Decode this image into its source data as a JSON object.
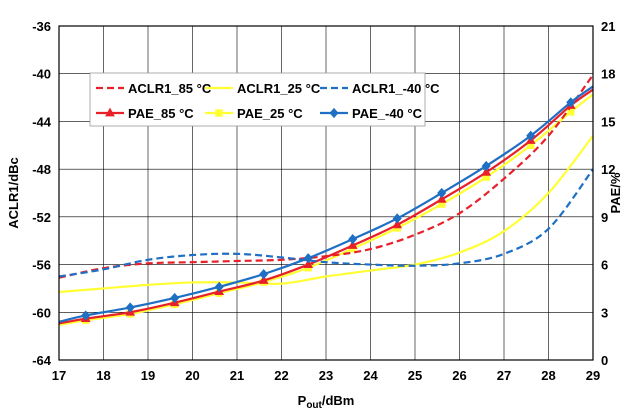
{
  "chart_data": {
    "type": "line",
    "xlabel": "Pout/dBm",
    "xlabel_main": "P",
    "xlabel_sub": "out",
    "xlabel_unit": "/dBm",
    "ylabel": "ACLR1/dBc",
    "y2label": "PAE/%",
    "xlim": [
      17,
      29
    ],
    "ylim": [
      -64,
      -36
    ],
    "y2lim": [
      0,
      21
    ],
    "x_ticks": [
      "17",
      "18",
      "19",
      "20",
      "21",
      "22",
      "23",
      "24",
      "25",
      "26",
      "27",
      "28",
      "29"
    ],
    "y_ticks": [
      "-36",
      "-40",
      "-44",
      "-48",
      "-52",
      "-56",
      "-60",
      "-64"
    ],
    "y2_ticks": [
      "21",
      "18",
      "15",
      "12",
      "9",
      "6",
      "3",
      "0"
    ],
    "grid": true,
    "legend_position": "upper-left",
    "series": [
      {
        "name": "ACLR1_85 °C",
        "axis": "left",
        "color": "#e8202a",
        "style": "dashed",
        "marker": "none",
        "x": [
          17,
          18,
          19,
          20,
          21,
          22,
          23,
          24,
          25,
          26,
          27,
          28,
          29
        ],
        "y": [
          -57.1,
          -56.3,
          -55.9,
          -55.8,
          -55.7,
          -55.6,
          -55.3,
          -54.7,
          -53.5,
          -51.7,
          -48.8,
          -45.2,
          -40.1
        ]
      },
      {
        "name": "ACLR1_25 °C",
        "axis": "left",
        "color": "#ffff33",
        "style": "solid",
        "marker": "none",
        "x": [
          17,
          18,
          19,
          20,
          21,
          22,
          23,
          24,
          25,
          26,
          27,
          28,
          29
        ],
        "y": [
          -58.3,
          -58.0,
          -57.7,
          -57.5,
          -57.5,
          -57.6,
          -57.0,
          -56.5,
          -56.0,
          -55.0,
          -53.2,
          -50.0,
          -45.2
        ]
      },
      {
        "name": "ACLR1_-40 °C",
        "axis": "left",
        "color": "#1f6fc4",
        "style": "dashed",
        "marker": "none",
        "x": [
          17,
          18,
          19,
          20,
          21,
          22,
          23,
          24,
          25,
          26,
          27,
          28,
          29
        ],
        "y": [
          -57.0,
          -56.4,
          -55.6,
          -55.2,
          -55.1,
          -55.4,
          -55.8,
          -56.0,
          -56.1,
          -55.9,
          -55.1,
          -53.0,
          -48.0
        ]
      },
      {
        "name": "PAE_85 °C",
        "axis": "right",
        "color": "#e8202a",
        "style": "solid",
        "marker": "triangle",
        "x": [
          17,
          17.6,
          18.6,
          19.6,
          20.6,
          21.6,
          22.6,
          23.6,
          24.6,
          25.6,
          26.6,
          27.6,
          28.5,
          29
        ],
        "y": [
          2.3,
          2.6,
          3.0,
          3.6,
          4.3,
          5.0,
          6.0,
          7.2,
          8.5,
          10.1,
          11.8,
          13.8,
          16.0,
          17.0
        ]
      },
      {
        "name": "PAE_25 °C",
        "axis": "right",
        "color": "#ffff33",
        "style": "solid",
        "marker": "square",
        "x": [
          17,
          17.6,
          18.6,
          19.6,
          20.6,
          21.6,
          22.6,
          23.6,
          24.6,
          25.6,
          26.6,
          27.6,
          28.5,
          29
        ],
        "y": [
          2.2,
          2.5,
          2.9,
          3.5,
          4.2,
          4.9,
          5.8,
          7.0,
          8.3,
          9.8,
          11.5,
          13.5,
          15.6,
          16.7
        ]
      },
      {
        "name": "PAE_-40 °C",
        "axis": "right",
        "color": "#1f6fc4",
        "style": "solid",
        "marker": "diamond",
        "x": [
          17,
          17.6,
          18.6,
          19.6,
          20.6,
          21.6,
          22.6,
          23.6,
          24.6,
          25.6,
          26.6,
          27.6,
          28.5,
          29
        ],
        "y": [
          2.4,
          2.8,
          3.3,
          3.9,
          4.6,
          5.4,
          6.4,
          7.6,
          8.9,
          10.5,
          12.2,
          14.1,
          16.2,
          17.2
        ]
      }
    ]
  }
}
